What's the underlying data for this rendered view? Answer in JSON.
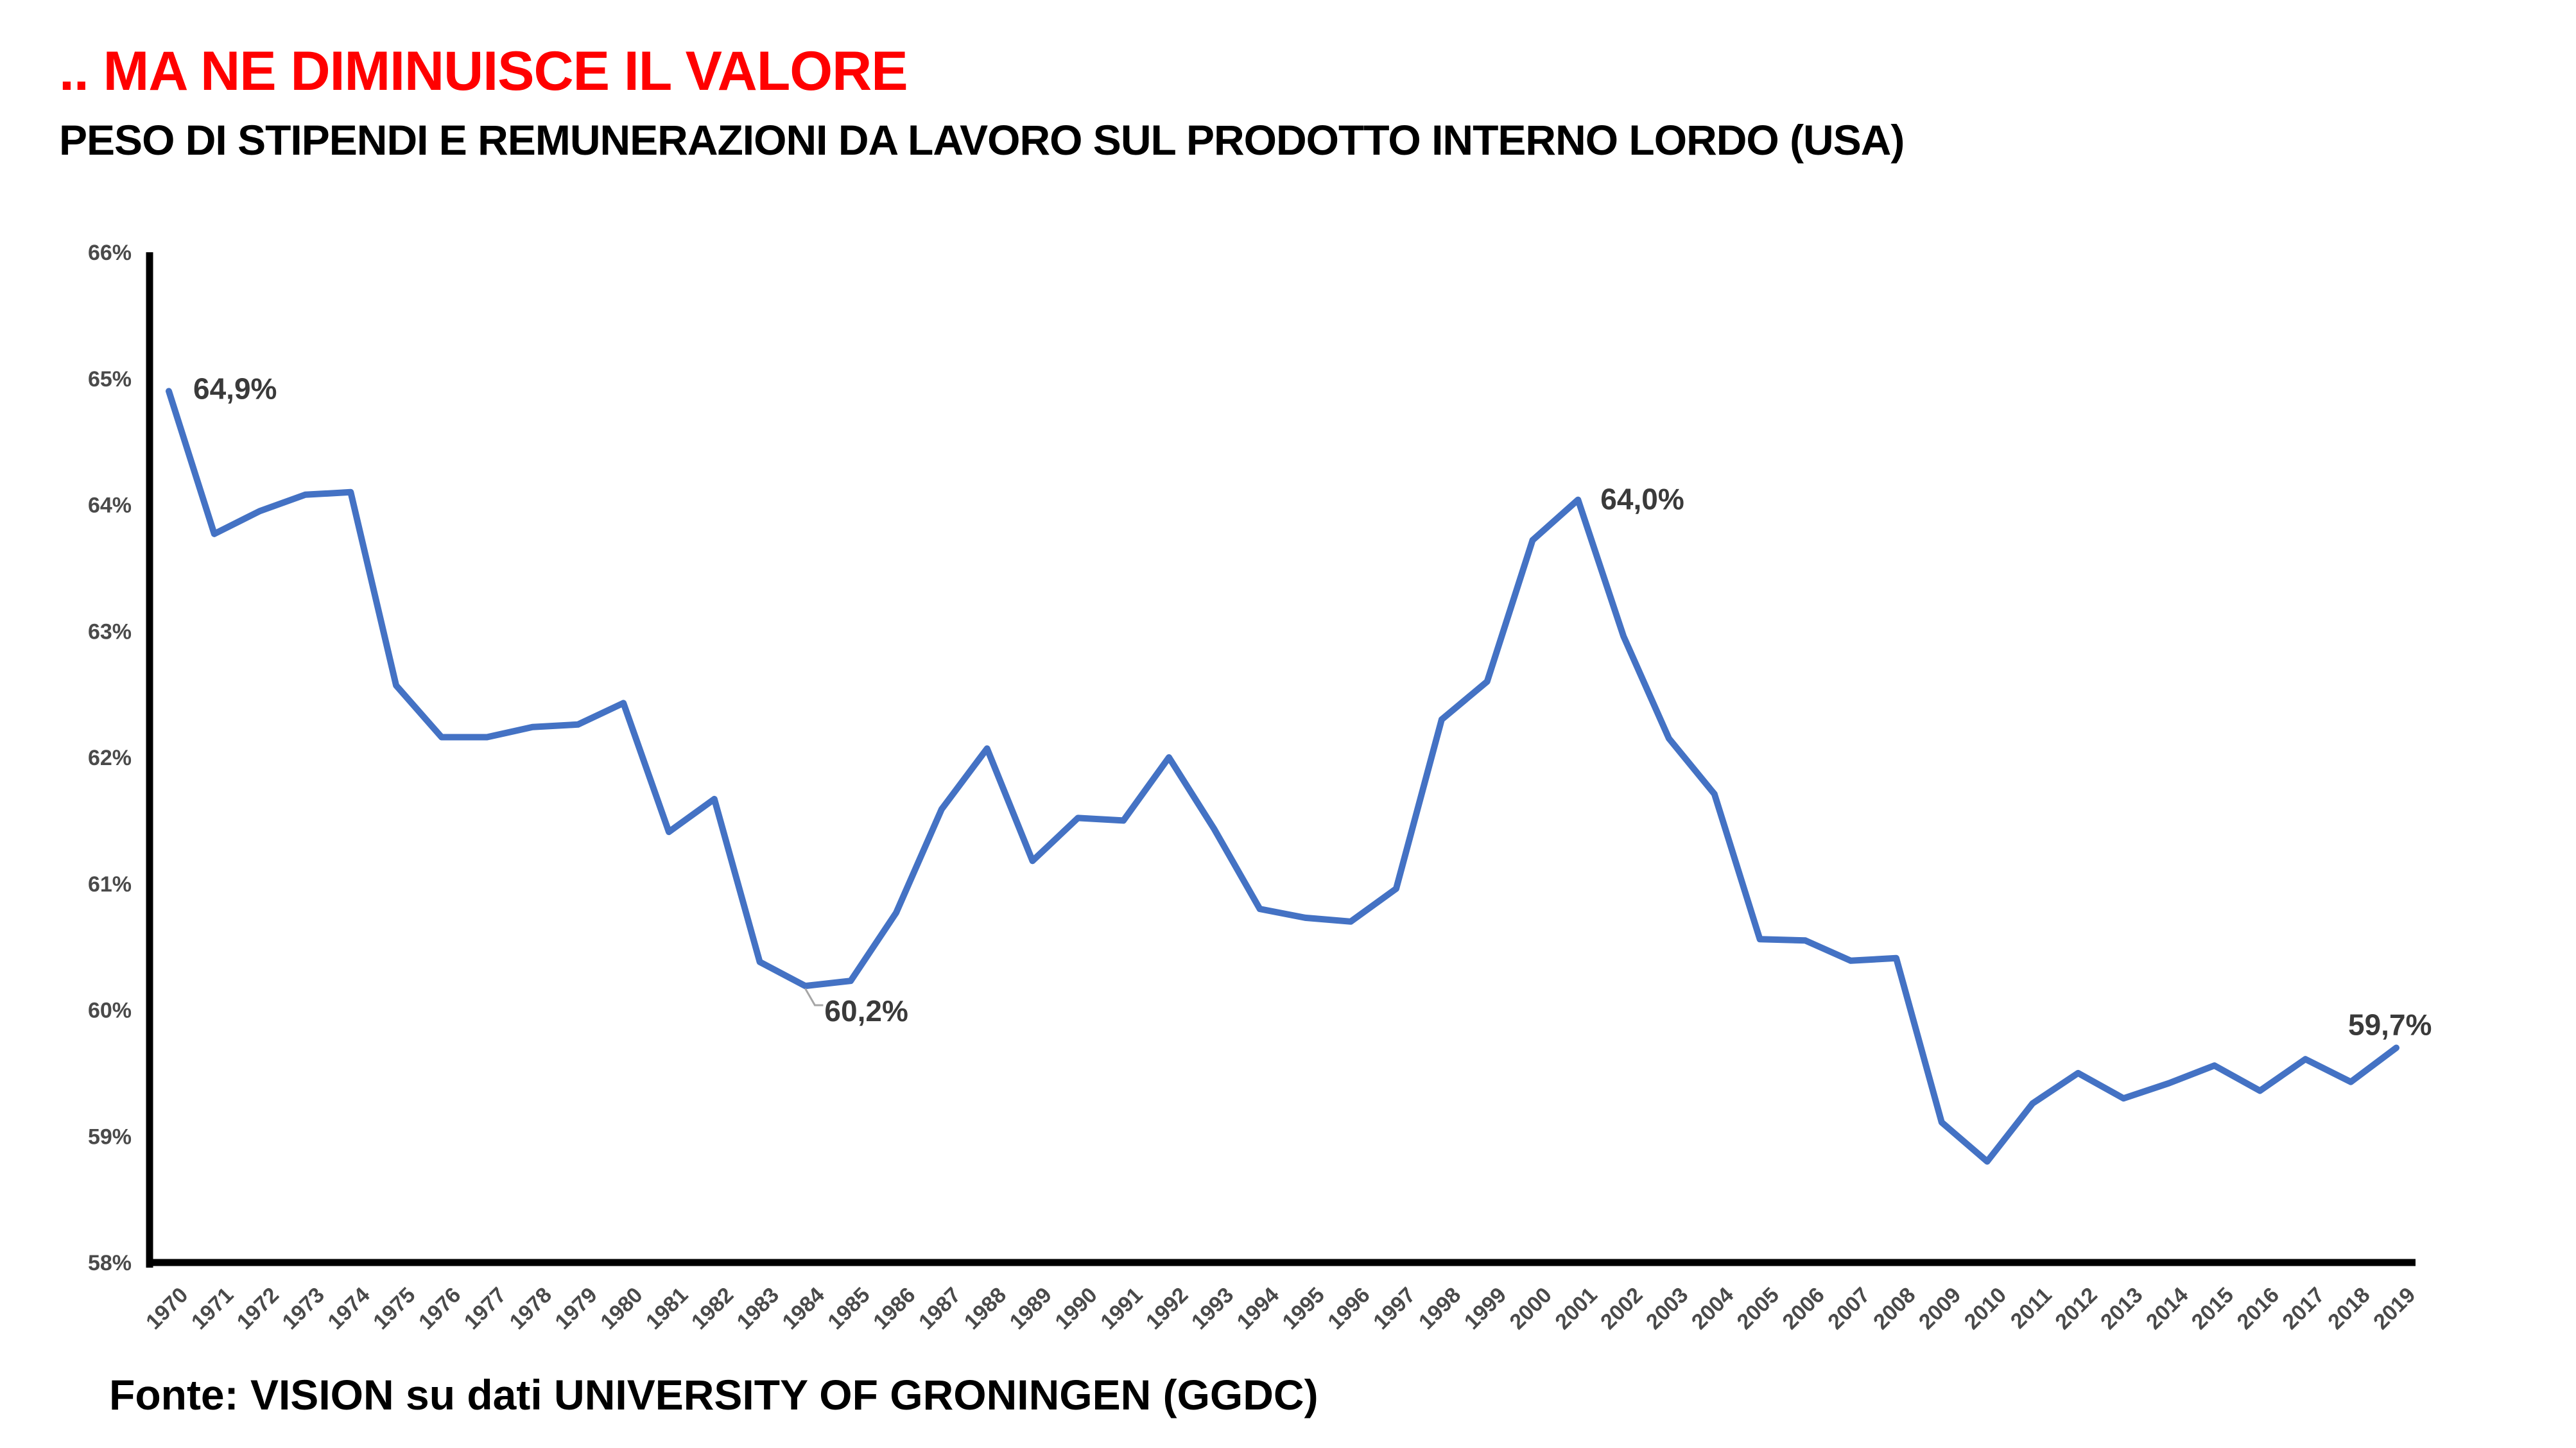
{
  "title": ".. MA NE DIMINUISCE IL VALORE",
  "subtitle": "PESO DI STIPENDI E REMUNERAZIONI DA LAVORO SUL PRODOTTO INTERNO LORDO (USA)",
  "source": "Fonte: VISION su dati UNIVERSITY OF GRONINGEN (GGDC)",
  "colors": {
    "title": "#ff0000",
    "line": "#4472c4",
    "axis": "#000000"
  },
  "chart_data": {
    "type": "line",
    "title": ".. MA NE DIMINUISCE IL VALORE",
    "subtitle": "PESO DI STIPENDI E REMUNERAZIONI DA LAVORO SUL PRODOTTO INTERNO LORDO (USA)",
    "xlabel": "",
    "ylabel": "",
    "ylim": [
      58,
      66
    ],
    "grid": false,
    "y_ticks": [
      "58%",
      "59%",
      "60%",
      "61%",
      "62%",
      "63%",
      "64%",
      "65%",
      "66%"
    ],
    "x": [
      "1970",
      "1971",
      "1972",
      "1973",
      "1974",
      "1975",
      "1976",
      "1977",
      "1978",
      "1979",
      "1980",
      "1981",
      "1982",
      "1983",
      "1984",
      "1985",
      "1986",
      "1987",
      "1988",
      "1989",
      "1990",
      "1991",
      "1992",
      "1993",
      "1994",
      "1995",
      "1996",
      "1997",
      "1998",
      "1999",
      "2000",
      "2001",
      "2002",
      "2003",
      "2004",
      "2005",
      "2006",
      "2007",
      "2008",
      "2009",
      "2010",
      "2011",
      "2012",
      "2013",
      "2014",
      "2015",
      "2016",
      "2017",
      "2018",
      "2019"
    ],
    "series": [
      {
        "values": [
          64.9,
          63.77,
          63.95,
          64.08,
          64.1,
          62.57,
          62.16,
          62.16,
          62.24,
          62.26,
          62.43,
          61.41,
          61.67,
          60.38,
          60.19,
          60.23,
          60.77,
          61.59,
          62.07,
          61.18,
          61.52,
          61.5,
          62.0,
          61.43,
          60.8,
          60.73,
          60.7,
          60.96,
          62.3,
          62.6,
          63.72,
          64.04,
          62.96,
          62.15,
          61.71,
          60.56,
          60.55,
          60.39,
          60.41,
          59.11,
          58.8,
          59.26,
          59.5,
          59.3,
          59.42,
          59.56,
          59.36,
          59.61,
          59.43,
          59.7
        ],
        "color": "#4472c4"
      }
    ],
    "annotations": [
      {
        "year": "1970",
        "text": "64,9%"
      },
      {
        "year": "1984",
        "text": "60,2%"
      },
      {
        "year": "2001",
        "text": "64,0%"
      },
      {
        "year": "2019",
        "text": "59,7%"
      }
    ]
  }
}
